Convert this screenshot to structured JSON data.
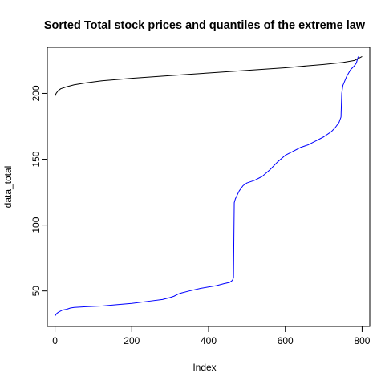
{
  "chart_data": {
    "type": "line",
    "title": "Sorted Total stock prices and quantiles of the extreme law",
    "xlabel": "Index",
    "ylabel": "data_total",
    "xlim": [
      -20,
      820
    ],
    "ylim": [
      23,
      235
    ],
    "x_ticks": [
      0,
      200,
      400,
      600,
      800
    ],
    "y_ticks": [
      50,
      100,
      150,
      200
    ],
    "grid": false,
    "legend": "none",
    "series": [
      {
        "color": "#0000ff",
        "points": [
          [
            0,
            31
          ],
          [
            5,
            33
          ],
          [
            10,
            34
          ],
          [
            20,
            35.5
          ],
          [
            30,
            36
          ],
          [
            40,
            37
          ],
          [
            50,
            37.5
          ],
          [
            80,
            38
          ],
          [
            120,
            38.5
          ],
          [
            160,
            39.5
          ],
          [
            200,
            40.5
          ],
          [
            240,
            42
          ],
          [
            280,
            43.5
          ],
          [
            300,
            45
          ],
          [
            310,
            46
          ],
          [
            320,
            47.5
          ],
          [
            330,
            48.5
          ],
          [
            350,
            50
          ],
          [
            380,
            52
          ],
          [
            420,
            54
          ],
          [
            440,
            55.5
          ],
          [
            455,
            56.5
          ],
          [
            462,
            58
          ],
          [
            465,
            60
          ],
          [
            466,
            90
          ],
          [
            467,
            117
          ],
          [
            470,
            120
          ],
          [
            475,
            123
          ],
          [
            480,
            126
          ],
          [
            490,
            130
          ],
          [
            500,
            132
          ],
          [
            520,
            134
          ],
          [
            540,
            137
          ],
          [
            560,
            142
          ],
          [
            580,
            148
          ],
          [
            600,
            153
          ],
          [
            620,
            156
          ],
          [
            640,
            159
          ],
          [
            660,
            161
          ],
          [
            680,
            164
          ],
          [
            700,
            167
          ],
          [
            720,
            171
          ],
          [
            730,
            174
          ],
          [
            740,
            178
          ],
          [
            745,
            182
          ],
          [
            747,
            200
          ],
          [
            750,
            206
          ],
          [
            760,
            213
          ],
          [
            770,
            218
          ],
          [
            780,
            221
          ],
          [
            785,
            223
          ],
          [
            790,
            228
          ]
        ]
      },
      {
        "color": "#000000",
        "points": [
          [
            0,
            198
          ],
          [
            3,
            200
          ],
          [
            8,
            202
          ],
          [
            15,
            203.5
          ],
          [
            30,
            205
          ],
          [
            50,
            206.5
          ],
          [
            80,
            208
          ],
          [
            120,
            209.5
          ],
          [
            200,
            211.5
          ],
          [
            300,
            213.5
          ],
          [
            400,
            215.5
          ],
          [
            500,
            217.5
          ],
          [
            600,
            219.5
          ],
          [
            700,
            222
          ],
          [
            750,
            223.5
          ],
          [
            780,
            225
          ],
          [
            800,
            228
          ]
        ]
      }
    ]
  }
}
